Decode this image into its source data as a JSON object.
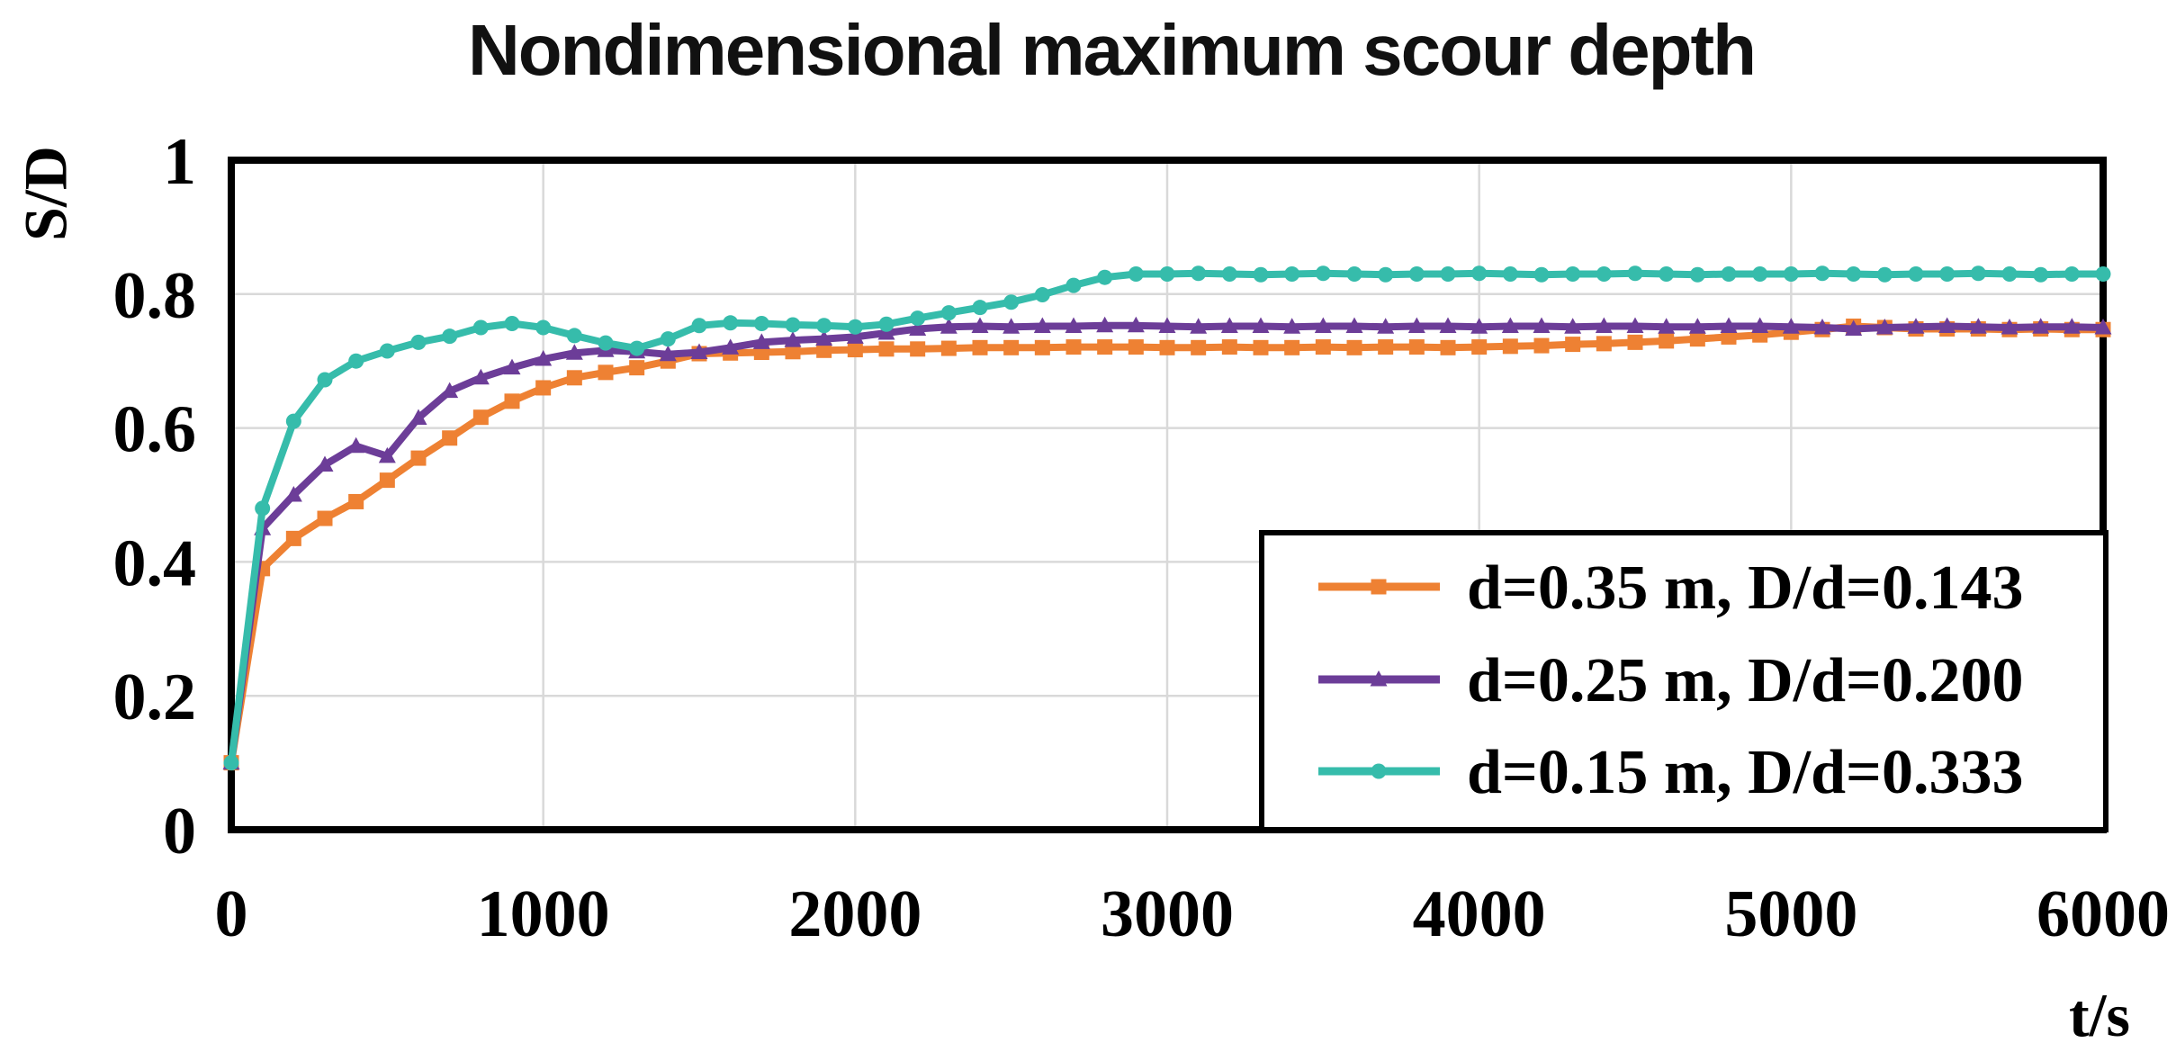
{
  "chart_data": {
    "type": "line",
    "title": "Nondimensional maximum scour depth",
    "xlabel": "t/s",
    "ylabel": "S/D",
    "xlim": [
      0,
      6000
    ],
    "ylim": [
      0,
      1
    ],
    "x_ticks": [
      0,
      1000,
      2000,
      3000,
      4000,
      5000,
      6000
    ],
    "x_tick_labels": [
      "0",
      "1000",
      "2000",
      "3000",
      "4000",
      "5000",
      "6000"
    ],
    "y_ticks": [
      0,
      0.2,
      0.4,
      0.6,
      0.8,
      1
    ],
    "y_tick_labels": [
      "0",
      "0.2",
      "0.4",
      "0.6",
      "0.8",
      "1"
    ],
    "x_gridlines": [
      1000,
      2000,
      3000,
      4000,
      5000
    ],
    "y_gridlines": [
      0.2,
      0.4,
      0.6,
      0.8
    ],
    "grid_on": true,
    "grid_color": "#d9d9d9",
    "axis_color": "#000000",
    "background_color": "#ffffff",
    "legend_position": "lower right",
    "t": [
      0,
      100,
      200,
      300,
      400,
      500,
      600,
      700,
      800,
      900,
      1000,
      1100,
      1200,
      1300,
      1400,
      1500,
      1600,
      1700,
      1800,
      1900,
      2000,
      2100,
      2200,
      2300,
      2400,
      2500,
      2600,
      2700,
      2800,
      2900,
      3000,
      3100,
      3200,
      3300,
      3400,
      3500,
      3600,
      3700,
      3800,
      3900,
      4000,
      4100,
      4200,
      4300,
      4400,
      4500,
      4600,
      4700,
      4800,
      4900,
      5000,
      5100,
      5200,
      5300,
      5400,
      5500,
      5600,
      5700,
      5800,
      5900,
      6000
    ],
    "series": [
      {
        "name": "d=0.35 m, D/d=0.143",
        "color": "#ee8133",
        "marker": "square",
        "values": [
          0.1,
          0.39,
          0.435,
          0.465,
          0.49,
          0.522,
          0.555,
          0.585,
          0.616,
          0.64,
          0.66,
          0.675,
          0.683,
          0.69,
          0.7,
          0.711,
          0.712,
          0.713,
          0.714,
          0.716,
          0.717,
          0.718,
          0.718,
          0.719,
          0.72,
          0.72,
          0.72,
          0.721,
          0.721,
          0.721,
          0.72,
          0.72,
          0.721,
          0.72,
          0.72,
          0.721,
          0.72,
          0.721,
          0.721,
          0.72,
          0.721,
          0.722,
          0.723,
          0.725,
          0.726,
          0.728,
          0.73,
          0.733,
          0.736,
          0.739,
          0.743,
          0.747,
          0.752,
          0.75,
          0.748,
          0.748,
          0.748,
          0.747,
          0.748,
          0.747,
          0.747
        ]
      },
      {
        "name": "d=0.25 m, D/d=0.200",
        "color": "#6c3d98",
        "marker": "triangle",
        "values": [
          0.1,
          0.45,
          0.5,
          0.545,
          0.573,
          0.558,
          0.615,
          0.655,
          0.675,
          0.69,
          0.703,
          0.712,
          0.716,
          0.714,
          0.71,
          0.713,
          0.72,
          0.728,
          0.731,
          0.733,
          0.736,
          0.742,
          0.748,
          0.751,
          0.752,
          0.751,
          0.752,
          0.752,
          0.753,
          0.753,
          0.752,
          0.751,
          0.752,
          0.752,
          0.751,
          0.752,
          0.752,
          0.751,
          0.752,
          0.752,
          0.751,
          0.752,
          0.752,
          0.751,
          0.752,
          0.752,
          0.751,
          0.751,
          0.752,
          0.752,
          0.751,
          0.75,
          0.748,
          0.75,
          0.751,
          0.752,
          0.751,
          0.75,
          0.751,
          0.751,
          0.75
        ]
      },
      {
        "name": "d=0.15 m, D/d=0.333",
        "color": "#36bcab",
        "marker": "circle",
        "values": [
          0.1,
          0.48,
          0.61,
          0.672,
          0.7,
          0.715,
          0.728,
          0.737,
          0.75,
          0.756,
          0.75,
          0.738,
          0.727,
          0.719,
          0.733,
          0.753,
          0.757,
          0.756,
          0.754,
          0.753,
          0.751,
          0.755,
          0.764,
          0.772,
          0.78,
          0.788,
          0.799,
          0.813,
          0.825,
          0.83,
          0.83,
          0.831,
          0.83,
          0.829,
          0.83,
          0.831,
          0.83,
          0.829,
          0.83,
          0.83,
          0.831,
          0.83,
          0.829,
          0.83,
          0.83,
          0.831,
          0.83,
          0.829,
          0.83,
          0.83,
          0.83,
          0.831,
          0.83,
          0.829,
          0.83,
          0.83,
          0.831,
          0.83,
          0.829,
          0.83,
          0.83
        ]
      }
    ]
  }
}
